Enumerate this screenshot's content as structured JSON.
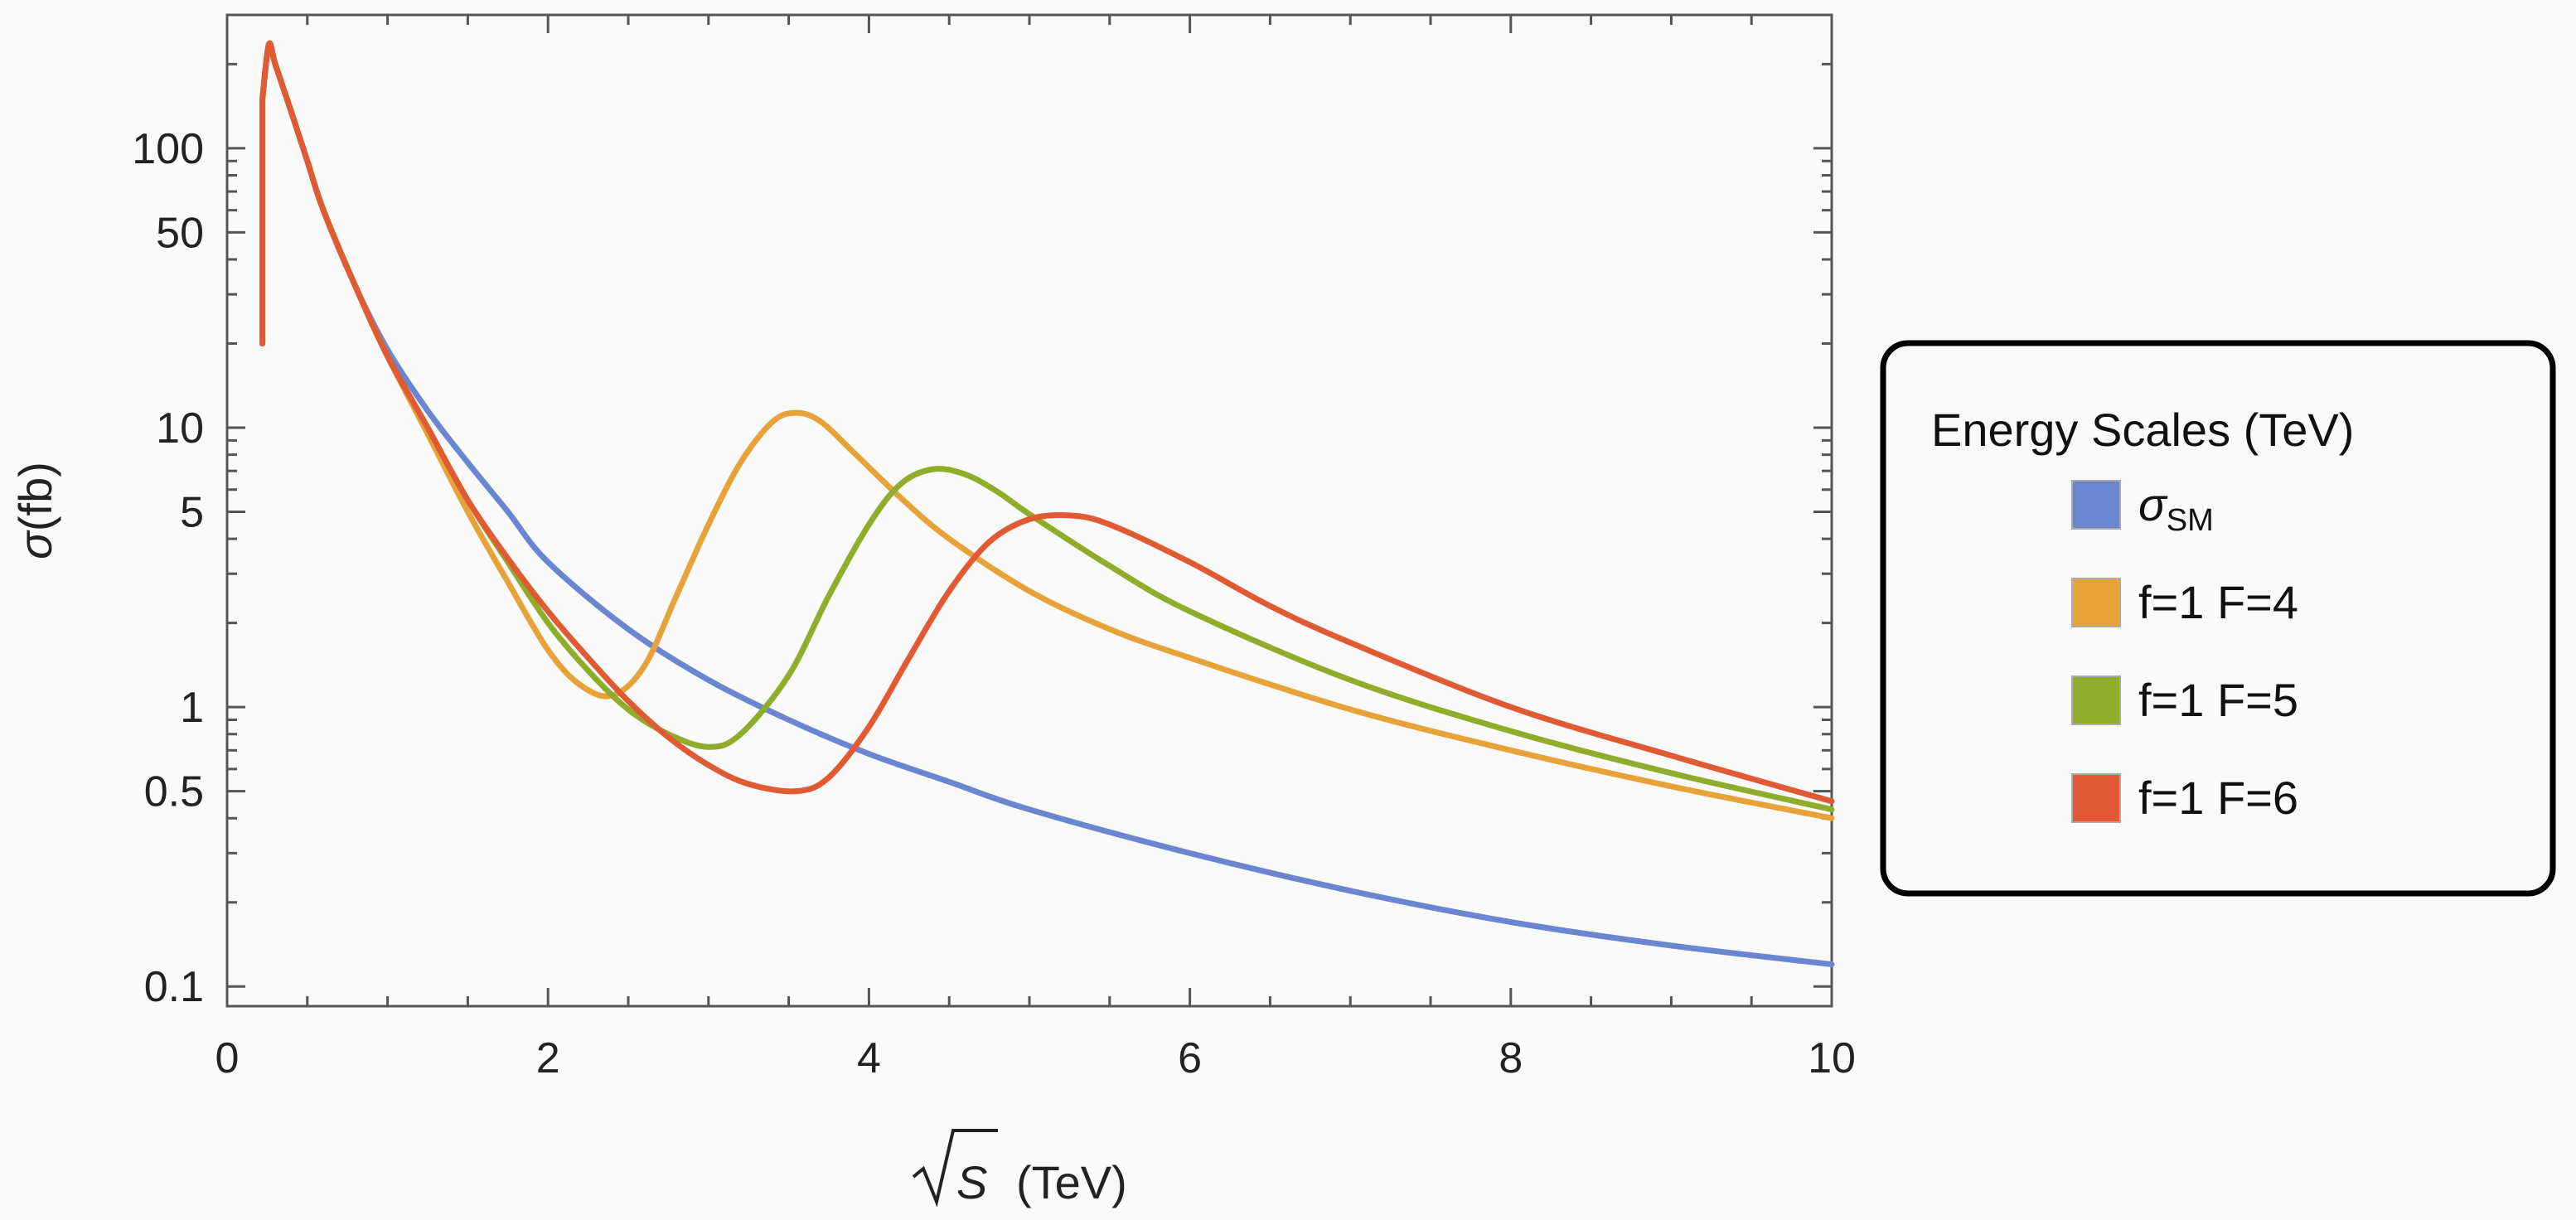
{
  "chart_data": {
    "type": "line",
    "title": "",
    "xlabel": {
      "symbol": "S",
      "unit": "(TeV)"
    },
    "ylabel": {
      "symbol": "σ",
      "unit": "(fb)"
    },
    "xlim": [
      0,
      10
    ],
    "ylim": [
      0.085,
      300
    ],
    "yscale": "log",
    "x_ticks": [
      0,
      2,
      4,
      6,
      8,
      10
    ],
    "y_ticks": [
      0.1,
      0.5,
      1,
      5,
      10,
      50,
      100
    ],
    "y_tick_labels": [
      "0.1",
      "0.5",
      "1",
      "5",
      "10",
      "50",
      "100"
    ],
    "grid": false,
    "legend": {
      "title": "Energy Scales (TeV)",
      "position": "outside-right"
    },
    "series": [
      {
        "name": "σ",
        "name_sub": "SM",
        "color": "#6a86d1",
        "x": [
          0.22,
          0.22,
          0.26,
          0.3,
          0.4,
          0.5,
          0.6,
          0.8,
          1.0,
          1.25,
          1.5,
          1.75,
          2.0,
          2.5,
          3.0,
          3.5,
          4.0,
          4.5,
          5.0,
          6.0,
          7.0,
          8.0,
          9.0,
          10.0
        ],
        "y": [
          20,
          150,
          235,
          200,
          135,
          90,
          60,
          32,
          19,
          11.5,
          7.5,
          5.0,
          3.3,
          1.9,
          1.25,
          0.9,
          0.68,
          0.54,
          0.43,
          0.3,
          0.22,
          0.17,
          0.14,
          0.12
        ]
      },
      {
        "name": "f=1 F=4",
        "color": "#e8a23a",
        "x": [
          0.22,
          0.22,
          0.26,
          0.3,
          0.4,
          0.5,
          0.6,
          0.8,
          1.0,
          1.25,
          1.5,
          1.75,
          2.0,
          2.2,
          2.4,
          2.6,
          2.8,
          3.0,
          3.2,
          3.4,
          3.55,
          3.7,
          3.9,
          4.2,
          4.5,
          5.0,
          5.5,
          6.0,
          7.0,
          8.0,
          9.0,
          10.0
        ],
        "y": [
          20,
          150,
          235,
          200,
          135,
          90,
          60,
          32,
          18,
          9.5,
          5.0,
          2.8,
          1.6,
          1.2,
          1.1,
          1.4,
          2.5,
          4.5,
          7.5,
          10.5,
          11.3,
          10.5,
          8.2,
          5.6,
          4.0,
          2.6,
          1.9,
          1.5,
          0.98,
          0.7,
          0.52,
          0.4
        ]
      },
      {
        "name": "f=1 F=5",
        "color": "#8fad2a",
        "x": [
          0.22,
          0.22,
          0.26,
          0.3,
          0.4,
          0.5,
          0.6,
          0.8,
          1.0,
          1.25,
          1.5,
          1.75,
          2.0,
          2.25,
          2.5,
          2.75,
          3.0,
          3.2,
          3.5,
          3.75,
          4.0,
          4.2,
          4.4,
          4.6,
          4.8,
          5.0,
          5.5,
          6.0,
          7.0,
          8.0,
          9.0,
          10.0
        ],
        "y": [
          20,
          150,
          235,
          200,
          135,
          90,
          60,
          32,
          18,
          10,
          5.5,
          3.3,
          2.0,
          1.35,
          0.98,
          0.8,
          0.72,
          0.8,
          1.3,
          2.5,
          4.5,
          6.3,
          7.1,
          6.8,
          5.9,
          4.9,
          3.2,
          2.2,
          1.25,
          0.82,
          0.58,
          0.43
        ]
      },
      {
        "name": "f=1 F=6",
        "color": "#e05a33",
        "x": [
          0.22,
          0.22,
          0.26,
          0.3,
          0.4,
          0.5,
          0.6,
          0.8,
          1.0,
          1.25,
          1.5,
          1.75,
          2.0,
          2.25,
          2.5,
          2.75,
          3.0,
          3.25,
          3.55,
          3.75,
          4.0,
          4.25,
          4.5,
          4.75,
          5.0,
          5.25,
          5.5,
          6.0,
          6.5,
          7.0,
          8.0,
          9.0,
          10.0
        ],
        "y": [
          20,
          150,
          235,
          200,
          135,
          90,
          60,
          32,
          18,
          10,
          5.5,
          3.4,
          2.2,
          1.5,
          1.05,
          0.78,
          0.62,
          0.53,
          0.5,
          0.56,
          0.85,
          1.5,
          2.6,
          3.9,
          4.7,
          4.85,
          4.5,
          3.3,
          2.3,
          1.7,
          1.0,
          0.67,
          0.46
        ]
      }
    ]
  }
}
